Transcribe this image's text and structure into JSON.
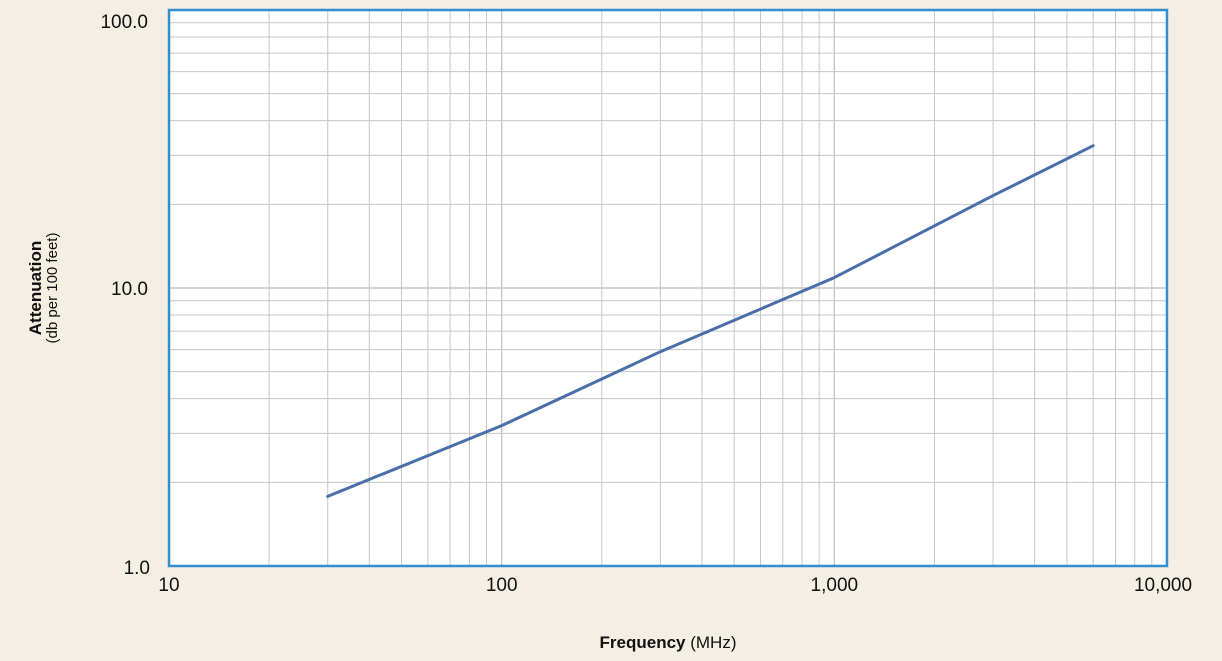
{
  "chart_data": {
    "type": "line",
    "xscale": "log",
    "yscale": "log",
    "xlim": [
      10,
      10000
    ],
    "ylim": [
      1.0,
      100.0
    ],
    "grid": true,
    "colors": {
      "page_background": "#f4efe4",
      "plot_background": "#ffffff",
      "plot_border": "#2f8fd0",
      "grid": "#c6c6c6",
      "line": "#4a6fa8"
    },
    "xlabel": {
      "bold": "Frequency",
      "normal": " (MHz)"
    },
    "ylabel": {
      "bold": "Attenuation",
      "normal": "(db per 100 feet)"
    },
    "x_ticks": [
      {
        "value": 10,
        "label": "10"
      },
      {
        "value": 100,
        "label": "100"
      },
      {
        "value": 1000,
        "label": "1,000"
      },
      {
        "value": 10000,
        "label": "10,000"
      }
    ],
    "y_ticks": [
      {
        "value": 1.0,
        "label": "1.0"
      },
      {
        "value": 10.0,
        "label": "10.0"
      },
      {
        "value": 100.0,
        "label": "100.0"
      }
    ],
    "series": [
      {
        "x": [
          30,
          100,
          300,
          1000,
          3000,
          6000
        ],
        "y": [
          1.78,
          3.2,
          5.9,
          10.9,
          21.5,
          32.5
        ]
      }
    ]
  }
}
